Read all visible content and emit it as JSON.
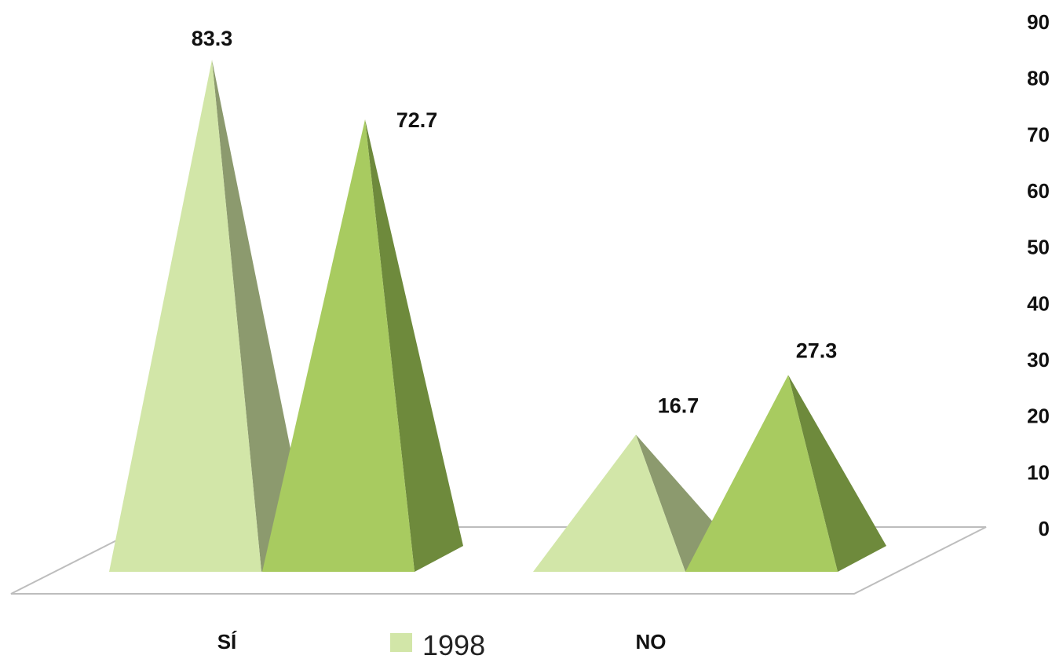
{
  "chart_data": {
    "type": "bar",
    "subtype": "3d-pyramid",
    "title": "",
    "xlabel": "",
    "ylabel": "",
    "categories": [
      "SÍ",
      "NO"
    ],
    "series": [
      {
        "name": "1998",
        "values": [
          83.3,
          16.7
        ],
        "color": "#d2e6a8",
        "shade_color": "#8c9a6e"
      },
      {
        "name": "",
        "values": [
          72.7,
          27.3
        ],
        "color": "#a8cb60",
        "shade_color": "#6e8a3c"
      }
    ],
    "y_ticks": [
      "0",
      "10",
      "20",
      "30",
      "40",
      "50",
      "60",
      "70",
      "80",
      "90"
    ],
    "ylim": [
      0,
      90
    ],
    "y_axis_side": "right",
    "grid": false,
    "legend": {
      "position": "bottom-center",
      "entries": [
        "1998"
      ]
    }
  }
}
